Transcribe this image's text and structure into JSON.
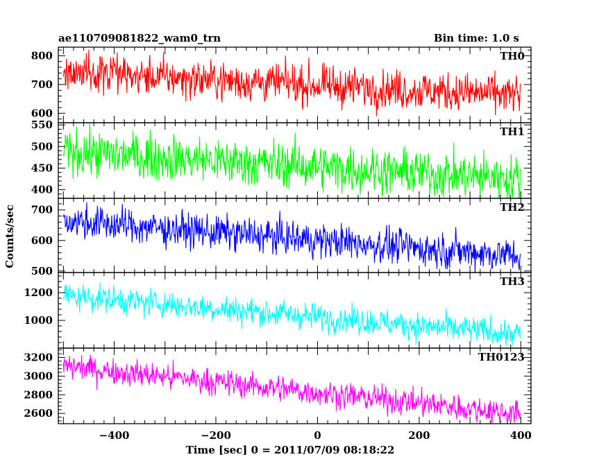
{
  "header": {
    "left_title": "ae110709081822_wam0_trn",
    "right_title": "Bin time: 1.0 s"
  },
  "chart_data": {
    "type": "line",
    "title": "ae110709081822_wam0_trn",
    "subtitle": "Bin time: 1.0 s",
    "xlabel": "Time [sec] 0 = 2011/07/09 08:18:22",
    "ylabel": "Counts/sec",
    "xlim": [
      -510,
      420
    ],
    "x_ticks": [
      -400,
      -200,
      0,
      200,
      400
    ],
    "x_tick_labels": [
      "−400",
      "−200",
      "0",
      "200",
      "400"
    ],
    "x_sample_range": [
      -500,
      399
    ],
    "grid": false,
    "panels": [
      {
        "name": "TH0",
        "color": "#ff0000",
        "ylim": [
          567,
          830
        ],
        "yticks": [
          600,
          700,
          800
        ],
        "trend_start": 742,
        "trend_end": 662,
        "noise_amplitude": 38
      },
      {
        "name": "TH1",
        "color": "#00ff00",
        "ylim": [
          380,
          555
        ],
        "yticks": [
          400,
          450,
          500,
          550
        ],
        "trend_start": 488,
        "trend_end": 425,
        "noise_amplitude": 30
      },
      {
        "name": "TH2",
        "color": "#0000ff",
        "ylim": [
          495,
          738
        ],
        "yticks": [
          500,
          600,
          700
        ],
        "trend_start": 665,
        "trend_end": 550,
        "noise_amplitude": 32
      },
      {
        "name": "TH3",
        "color": "#00ffff",
        "ylim": [
          800,
          1345
        ],
        "yticks": [
          1000,
          1200
        ],
        "trend_start": 1180,
        "trend_end": 900,
        "noise_amplitude": 55
      },
      {
        "name": "TH0123",
        "color": "#ff00ff",
        "ylim": [
          2490,
          3300
        ],
        "yticks": [
          2600,
          2800,
          3000,
          3200
        ],
        "trend_start": 3110,
        "trend_end": 2595,
        "noise_amplitude": 80
      }
    ]
  }
}
